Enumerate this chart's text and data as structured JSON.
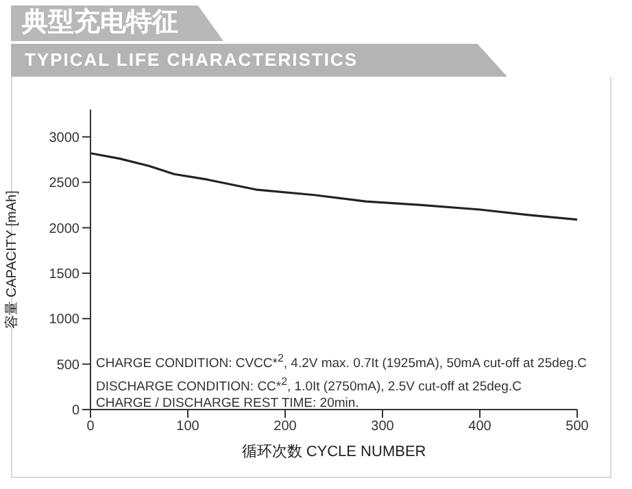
{
  "chart_data": {
    "type": "line",
    "title": "典型充电特征",
    "subtitle": "TYPICAL LIFE CHARACTERISTICS",
    "xlabel": "循环次数 CYCLE NUMBER",
    "ylabel": "容量 CAPACITY [mAh]",
    "x": [
      0,
      30,
      60,
      86,
      120,
      170,
      230,
      283,
      340,
      400,
      450,
      500
    ],
    "series": [
      {
        "color": "#222222",
        "values": [
          2820,
          2760,
          2680,
          2590,
          2530,
          2420,
          2360,
          2290,
          2250,
          2200,
          2140,
          2090
        ]
      }
    ],
    "xlim": [
      0,
      500
    ],
    "xticks": [
      0,
      100,
      200,
      300,
      400,
      500
    ],
    "ylim": [
      0,
      3300
    ],
    "yticks": [
      0,
      500,
      1000,
      1500,
      2000,
      2500,
      3000
    ],
    "annotations": [
      "CHARGE CONDITION: CVCC*$^{2}$, 4.2V max. 0.7It (1925mA), 50mA cut-off at 25deg.C",
      "DISCHARGE CONDITION: CC*$^{2}$, 1.0It (2750mA), 2.5V cut-off at 25deg.C",
      "CHARGE / DISCHARGE REST TIME: 20min."
    ],
    "legend": false,
    "grid": false,
    "marker": "none",
    "line_style": "solid"
  }
}
